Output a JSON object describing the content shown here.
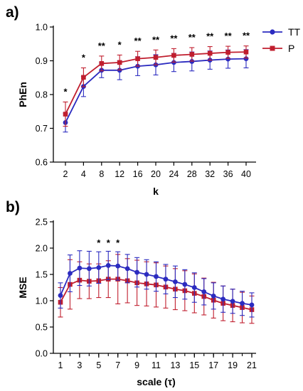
{
  "chart_data": [
    {
      "type": "line",
      "panel": "a)",
      "xlabel": "k",
      "ylabel": "PhEn",
      "categories": [
        "2",
        "4",
        "8",
        "12",
        "16",
        "20",
        "24",
        "28",
        "32",
        "36",
        "40"
      ],
      "ylim": [
        0.6,
        1.0
      ],
      "yticks": [
        "0.6",
        "0.7",
        "0.8",
        "0.9",
        "1.0"
      ],
      "grid": false,
      "legend": "top-right",
      "series": [
        {
          "name": "TT",
          "color": "#2b2bc0",
          "values": [
            0.717,
            0.824,
            0.872,
            0.872,
            0.884,
            0.888,
            0.895,
            0.898,
            0.902,
            0.905,
            0.906
          ],
          "errors": [
            0.028,
            0.03,
            0.022,
            0.028,
            0.028,
            0.03,
            0.027,
            0.028,
            0.027,
            0.027,
            0.027
          ]
        },
        {
          "name": "P",
          "color": "#c01e2e",
          "values": [
            0.742,
            0.851,
            0.892,
            0.895,
            0.906,
            0.91,
            0.916,
            0.919,
            0.922,
            0.925,
            0.926
          ],
          "errors": [
            0.036,
            0.028,
            0.022,
            0.022,
            0.022,
            0.022,
            0.02,
            0.02,
            0.02,
            0.018,
            0.018
          ]
        }
      ],
      "annotations": [
        "*",
        "*",
        "**",
        "*",
        "**",
        "**",
        "**",
        "**",
        "**",
        "**",
        "**"
      ]
    },
    {
      "type": "line",
      "panel": "b)",
      "xlabel": "scale (τ)",
      "ylabel": "MSE",
      "x": [
        1,
        2,
        3,
        4,
        5,
        6,
        7,
        8,
        9,
        10,
        11,
        12,
        13,
        14,
        15,
        16,
        17,
        18,
        19,
        20,
        21
      ],
      "xticks": [
        "1",
        "3",
        "5",
        "7",
        "9",
        "11",
        "13",
        "15",
        "17",
        "19",
        "21"
      ],
      "ylim": [
        0.0,
        2.5
      ],
      "yticks": [
        "0.0",
        "0.5",
        "1.0",
        "1.5",
        "2.0",
        "2.5"
      ],
      "grid": false,
      "series": [
        {
          "name": "TT",
          "color": "#2b2bc0",
          "values": [
            1.1,
            1.52,
            1.62,
            1.61,
            1.63,
            1.67,
            1.66,
            1.61,
            1.54,
            1.5,
            1.46,
            1.41,
            1.36,
            1.31,
            1.25,
            1.17,
            1.09,
            1.03,
            0.99,
            0.95,
            0.92
          ],
          "errors": [
            0.24,
            0.35,
            0.33,
            0.33,
            0.3,
            0.27,
            0.27,
            0.27,
            0.28,
            0.28,
            0.28,
            0.28,
            0.3,
            0.28,
            0.28,
            0.25,
            0.25,
            0.25,
            0.23,
            0.23,
            0.23
          ]
        },
        {
          "name": "P",
          "color": "#c01e2e",
          "values": [
            0.97,
            1.31,
            1.39,
            1.37,
            1.38,
            1.41,
            1.41,
            1.38,
            1.34,
            1.32,
            1.3,
            1.26,
            1.22,
            1.19,
            1.14,
            1.08,
            1.01,
            0.95,
            0.91,
            0.87,
            0.83
          ],
          "errors": [
            0.28,
            0.47,
            0.35,
            0.33,
            0.32,
            0.35,
            0.47,
            0.42,
            0.43,
            0.42,
            0.42,
            0.4,
            0.39,
            0.38,
            0.37,
            0.35,
            0.34,
            0.33,
            0.31,
            0.29,
            0.26
          ]
        }
      ],
      "annotations": [
        {
          "x": 5,
          "text": "*"
        },
        {
          "x": 6,
          "text": "*"
        },
        {
          "x": 7,
          "text": "*"
        }
      ]
    }
  ]
}
